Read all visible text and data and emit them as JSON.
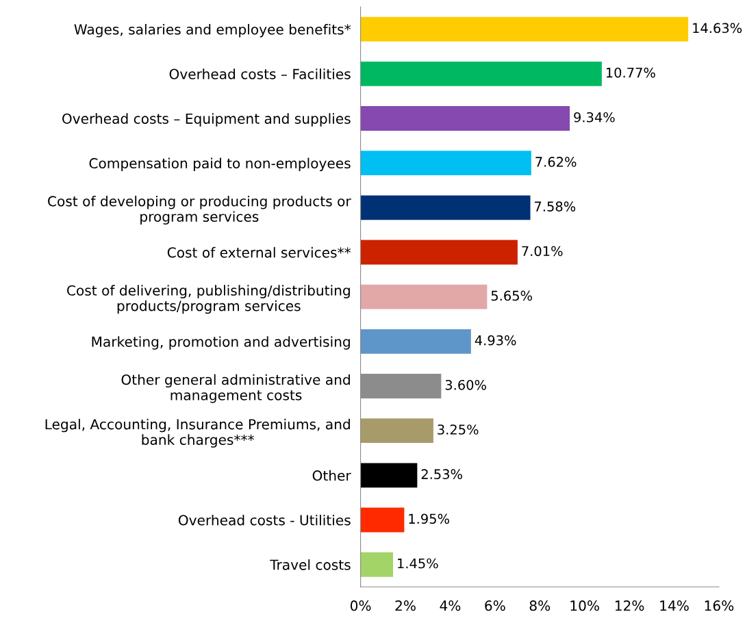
{
  "chart_data": {
    "type": "bar",
    "orientation": "horizontal",
    "categories": [
      "Wages, salaries and employee benefits*",
      "Overhead costs – Facilities",
      "Overhead costs – Equipment and supplies",
      "Compensation paid to non-employees",
      "Cost of developing or producing products or\nprogram services",
      "Cost of external services**",
      "Cost of delivering, publishing/distributing\nproducts/program services",
      "Marketing, promotion and advertising",
      "Other general administrative and\nmanagement costs",
      "Legal, Accounting, Insurance Premiums, and\nbank charges***",
      "Other",
      "Overhead costs - Utilities",
      "Travel costs"
    ],
    "values": [
      14.63,
      10.77,
      9.34,
      7.62,
      7.58,
      7.01,
      5.65,
      4.93,
      3.6,
      3.25,
      2.53,
      1.95,
      1.45
    ],
    "value_labels": [
      "14.63%",
      "10.77%",
      "9.34%",
      "7.62%",
      "7.58%",
      "7.01%",
      "5.65%",
      "4.93%",
      "3.60%",
      "3.25%",
      "2.53%",
      "1.95%",
      "1.45%"
    ],
    "colors": [
      "#ffcc00",
      "#00b862",
      "#8549b0",
      "#00bff3",
      "#003175",
      "#cc2200",
      "#e2a8a8",
      "#5e96c9",
      "#8c8c8c",
      "#a89b6a",
      "#000000",
      "#ff2a00",
      "#a3d468"
    ],
    "xlim": [
      0,
      16
    ],
    "xticks": [
      {
        "value": 0,
        "label": "0%"
      },
      {
        "value": 2,
        "label": "2%"
      },
      {
        "value": 4,
        "label": "4%"
      },
      {
        "value": 6,
        "label": "6%"
      },
      {
        "value": 8,
        "label": "8%"
      },
      {
        "value": 10,
        "label": "10%"
      },
      {
        "value": 12,
        "label": "12%"
      },
      {
        "value": 14,
        "label": "14%"
      },
      {
        "value": 16,
        "label": "16%"
      }
    ],
    "grid": false,
    "legend": false
  }
}
